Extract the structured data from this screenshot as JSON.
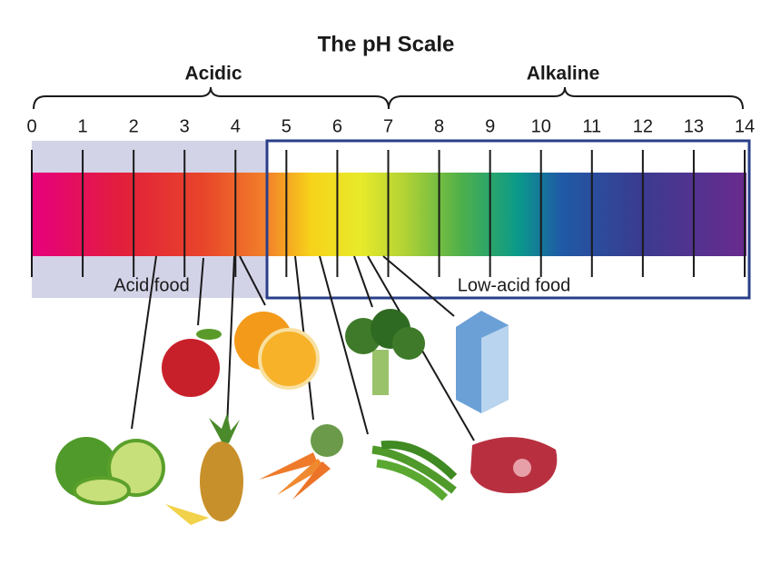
{
  "title": "The pH Scale",
  "groups": [
    {
      "label": "Acidic"
    },
    {
      "label": "Alkaline"
    }
  ],
  "scale": {
    "ticks": [
      0,
      1,
      2,
      3,
      4,
      5,
      6,
      7,
      8,
      9,
      10,
      11,
      12,
      13,
      14
    ]
  },
  "regions": [
    {
      "label": "Acid food"
    },
    {
      "label": "Low-acid food"
    }
  ]
}
